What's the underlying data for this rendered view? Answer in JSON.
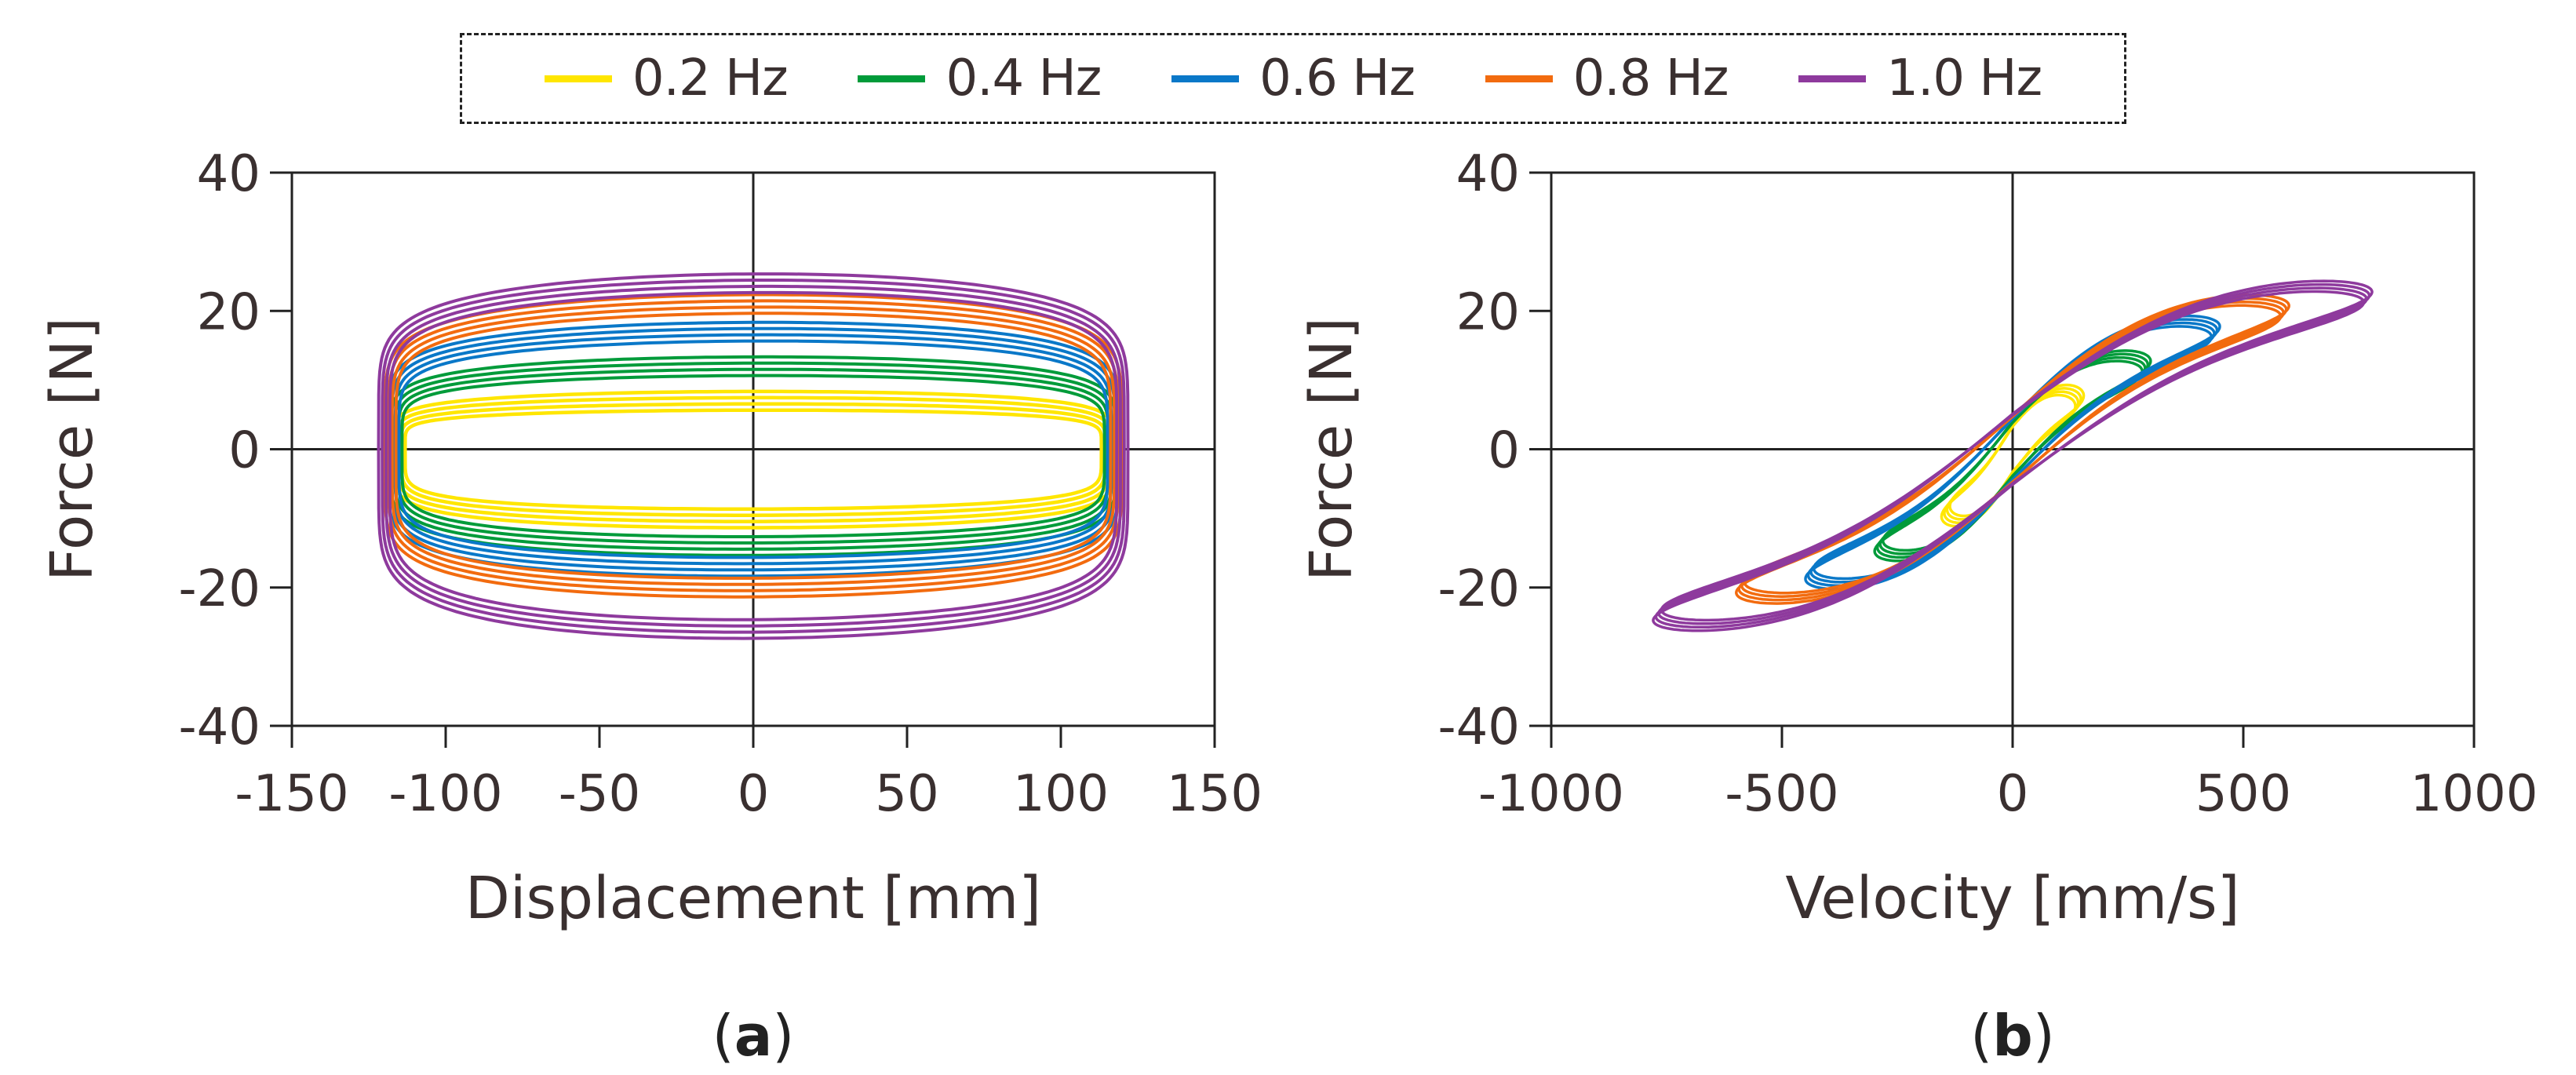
{
  "legend": [
    {
      "label": "0.2 Hz",
      "color": "#FFE600"
    },
    {
      "label": "0.4 Hz",
      "color": "#009B3A"
    },
    {
      "label": "0.6 Hz",
      "color": "#0A78C8"
    },
    {
      "label": "0.8 Hz",
      "color": "#F26B0F"
    },
    {
      "label": "1.0 Hz",
      "color": "#8E3A9D"
    }
  ],
  "chart_data": [
    {
      "type": "line",
      "panel_label": "(a)",
      "panel_letter": "a",
      "xlabel": "Displacement [mm]",
      "ylabel": "Force [N]",
      "xlim": [
        -150,
        150
      ],
      "ylim": [
        -40,
        40
      ],
      "xticks": [
        -150,
        -100,
        -50,
        0,
        50,
        100,
        150
      ],
      "yticks": [
        40,
        20,
        0,
        -20,
        -40
      ],
      "xtick_labels": [
        "-150",
        "-100",
        "-50",
        "0",
        "50",
        "100",
        "150"
      ],
      "ytick_labels": [
        "40",
        "20",
        "0",
        "-20",
        "-40"
      ],
      "series": [
        {
          "name": "0.2 Hz",
          "amplitude_mm": 115,
          "force_upper_N": 7,
          "force_lower_N": -10
        },
        {
          "name": "0.4 Hz",
          "amplitude_mm": 116,
          "force_upper_N": 12,
          "force_lower_N": -14
        },
        {
          "name": "0.6 Hz",
          "amplitude_mm": 117,
          "force_upper_N": 17,
          "force_lower_N": -17
        },
        {
          "name": "0.8 Hz",
          "amplitude_mm": 118,
          "force_upper_N": 21,
          "force_lower_N": -20
        },
        {
          "name": "1.0 Hz",
          "amplitude_mm": 120,
          "force_upper_N": 24,
          "force_lower_N": -26
        }
      ]
    },
    {
      "type": "line",
      "panel_label": "(b)",
      "panel_letter": "b",
      "xlabel": "Velocity [mm/s]",
      "ylabel": "Force [N]",
      "xlim": [
        -1000,
        1000
      ],
      "ylim": [
        -40,
        40
      ],
      "xticks": [
        -1000,
        -500,
        0,
        500,
        1000
      ],
      "yticks": [
        40,
        20,
        0,
        -20,
        -40
      ],
      "xtick_labels": [
        "-1000",
        "-500",
        "0",
        "500",
        "1000"
      ],
      "ytick_labels": [
        "40",
        "20",
        "0",
        "-20",
        "-40"
      ],
      "series": [
        {
          "name": "0.2 Hz",
          "max_velocity_mm_s": 145,
          "force_at_max_N": 7,
          "force_at_min_N": -9
        },
        {
          "name": "0.4 Hz",
          "max_velocity_mm_s": 290,
          "force_at_max_N": 12,
          "force_at_min_N": -14
        },
        {
          "name": "0.6 Hz",
          "max_velocity_mm_s": 440,
          "force_at_max_N": 17,
          "force_at_min_N": -18
        },
        {
          "name": "0.8 Hz",
          "max_velocity_mm_s": 590,
          "force_at_max_N": 20,
          "force_at_min_N": -20
        },
        {
          "name": "1.0 Hz",
          "max_velocity_mm_s": 770,
          "force_at_max_N": 22,
          "force_at_min_N": -24
        }
      ]
    }
  ]
}
